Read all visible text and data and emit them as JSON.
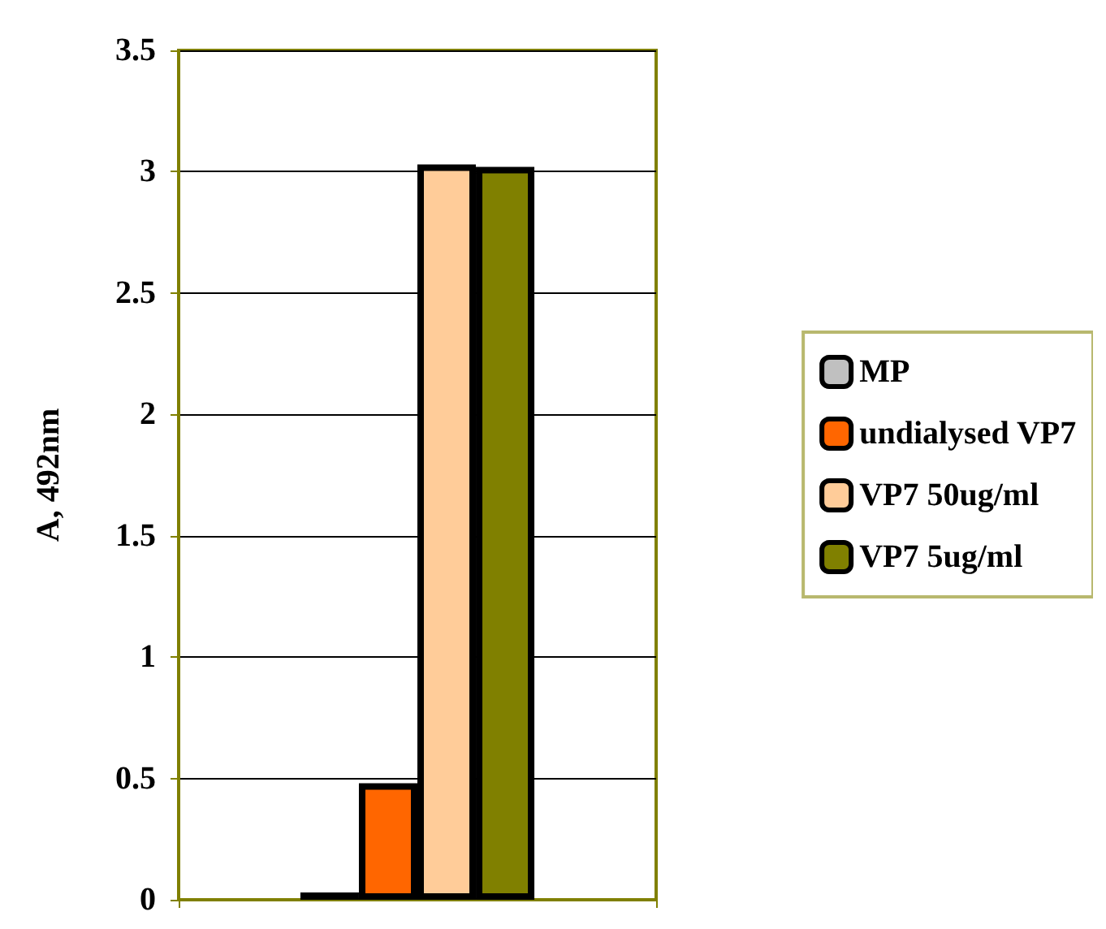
{
  "chart_data": {
    "type": "bar",
    "ylabel": "A, 492nm",
    "categories": [
      null
    ],
    "series": [
      {
        "name": "MP",
        "color": "#c0c0c0",
        "values": [
          0.03
        ]
      },
      {
        "name": "undialysed VP7",
        "color": "#ff6600",
        "values": [
          0.48
        ]
      },
      {
        "name": "VP7 50ug/ml",
        "color": "#ffcc99",
        "values": [
          3.03
        ]
      },
      {
        "name": "VP7 5ug/ml",
        "color": "#808000",
        "values": [
          3.02
        ]
      }
    ],
    "ylim": [
      0,
      3.5
    ],
    "yticks": [
      0,
      0.5,
      1,
      1.5,
      2,
      2.5,
      3,
      3.5
    ],
    "grid": "y",
    "legend": "right"
  }
}
